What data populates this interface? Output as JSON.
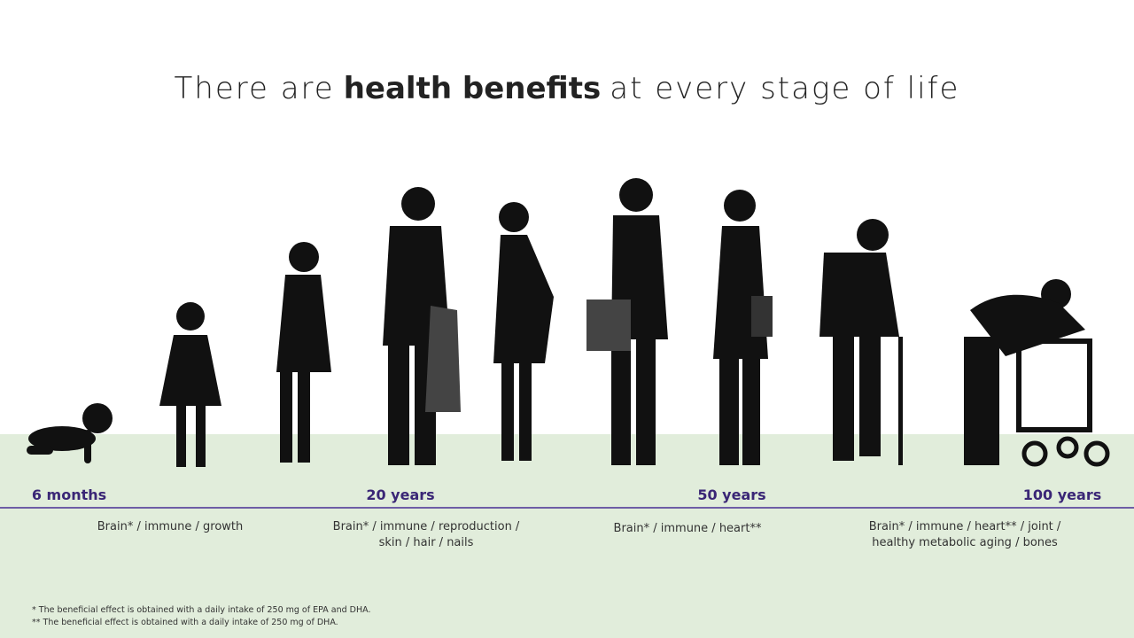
{
  "header": {
    "title": {
      "before": "There are",
      "bold": "health benefits",
      "after": "at every stage of life"
    }
  },
  "timeline": {
    "stages": [
      {
        "label": "6 months",
        "benefits": [
          "Brain* / immune / growth"
        ]
      },
      {
        "label": "20 years",
        "benefits": [
          "Brain* / immune / reproduction /",
          "skin / hair / nails"
        ]
      },
      {
        "label": "50 years",
        "benefits": [
          "Brain* / immune / heart**"
        ]
      },
      {
        "label": "100 years",
        "benefits": [
          "Brain* / immune / heart** / joint /",
          "healthy metabolic aging / bones"
        ]
      }
    ]
  },
  "footnotes": [
    "* The beneficial effect is obtained with a daily intake of 250 mg of EPA and DHA.",
    "** The beneficial effect is obtained with a daily intake of 250 mg of DHA."
  ]
}
